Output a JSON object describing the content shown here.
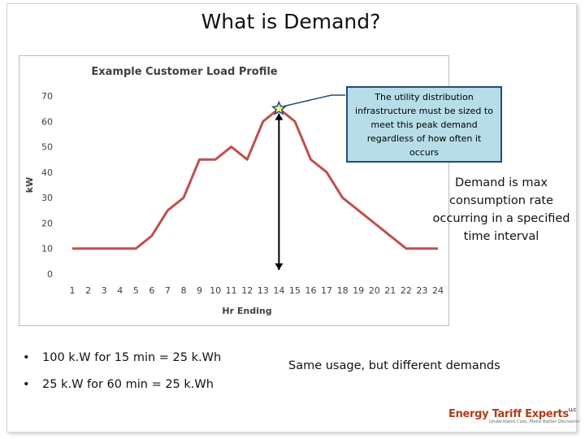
{
  "slide": {
    "title": "What is Demand?",
    "callout": "The utility distribution infrastructure must be sized to meet this peak demand regardless of how often it occurs",
    "demand_definition": "Demand is max consumption rate occurring in a specified time interval",
    "bullets": [
      "100 k.W for 15 min = 25 k.Wh",
      "25 k.W for 60 min = 25 k.Wh"
    ],
    "bullet_symbol": "•",
    "comparison": "Same usage, but different demands",
    "logo": {
      "name": "Energy Tariff Experts",
      "suffix": "LLC",
      "tagline": "Understand Cost, Make Better Decisions"
    }
  },
  "chart_data": {
    "type": "line",
    "title": "Example Customer Load Profile",
    "xlabel": "Hr Ending",
    "ylabel": "kW",
    "x": [
      1,
      2,
      3,
      4,
      5,
      6,
      7,
      8,
      9,
      10,
      11,
      12,
      13,
      14,
      15,
      16,
      17,
      18,
      19,
      20,
      21,
      22,
      23,
      24
    ],
    "series": [
      {
        "values": [
          10,
          10,
          10,
          10,
          10,
          15,
          25,
          30,
          45,
          45,
          50,
          45,
          60,
          65,
          60,
          45,
          40,
          30,
          25,
          20,
          15,
          10,
          10,
          10
        ]
      }
    ],
    "ylim": [
      0,
      70
    ],
    "yticks": [
      0,
      10,
      20,
      30,
      40,
      50,
      60,
      70
    ],
    "grid": false,
    "legend": "none",
    "peak_marker": {
      "x": 14,
      "y": 65
    },
    "colors": {
      "line": "#c0504d",
      "marker_fill": "#f3f08a",
      "marker_stroke": "#1f4e79",
      "callout_fill": "#b7dde8"
    }
  }
}
